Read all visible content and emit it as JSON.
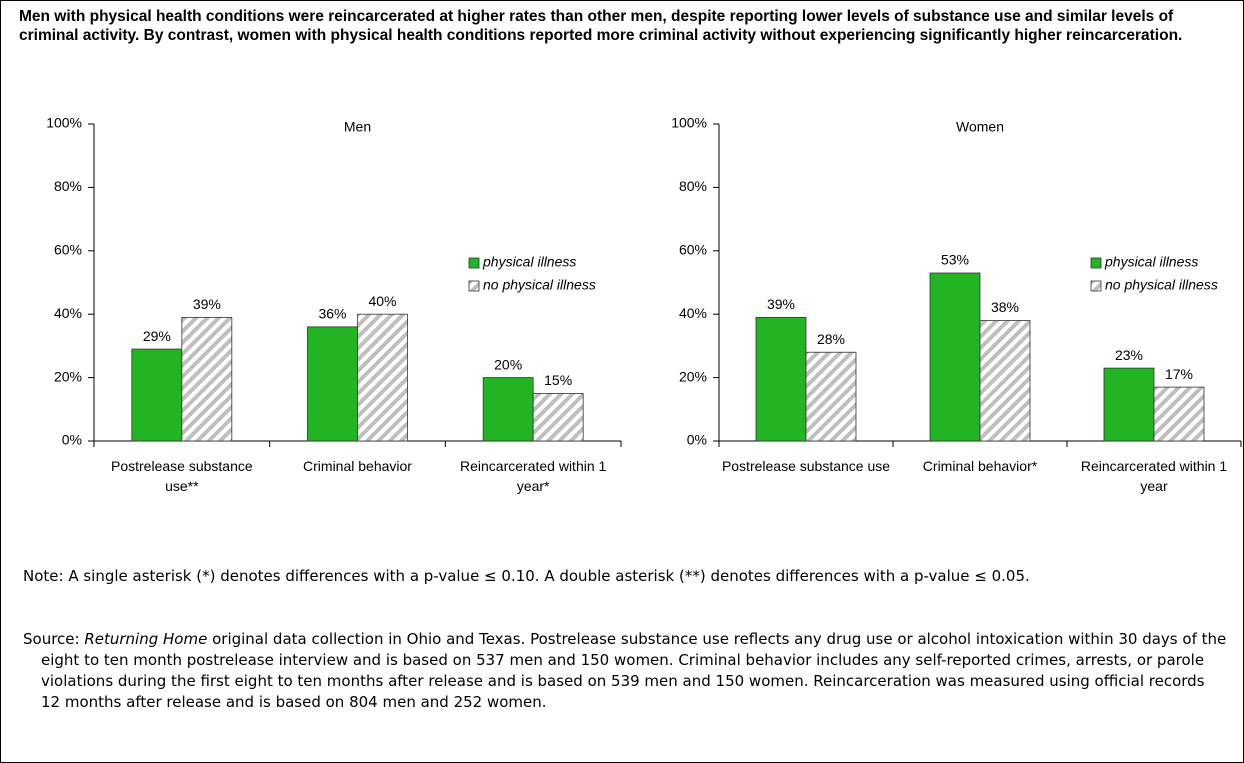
{
  "title": "Men with physical health conditions were reincarcerated at higher rates than other men, despite reporting lower levels of substance use and similar levels of criminal activity.  By contrast, women with physical health conditions reported more criminal activity without experiencing significantly higher reincarceration.",
  "chart_data": [
    {
      "type": "bar",
      "subtitle": "Men",
      "categories": [
        "Postrelease substance use**",
        "Criminal behavior",
        "Reincarcerated within 1 year*"
      ],
      "series": [
        {
          "name": "physical illness",
          "color": "#22b422",
          "values": [
            29,
            36,
            20
          ],
          "value_labels": [
            "29%",
            "36%",
            "20%"
          ]
        },
        {
          "name": "no physical illness",
          "color": "#bfbfbf",
          "hatch": true,
          "values": [
            39,
            40,
            15
          ],
          "value_labels": [
            "39%",
            "40%",
            "15%"
          ]
        }
      ],
      "ylim": [
        0,
        100
      ],
      "yticks": [
        {
          "value": 0,
          "label": "0%"
        },
        {
          "value": 20,
          "label": "20%"
        },
        {
          "value": 40,
          "label": "40%"
        },
        {
          "value": 60,
          "label": "60%"
        },
        {
          "value": 80,
          "label": "80%"
        },
        {
          "value": 100,
          "label": "100%"
        }
      ],
      "grid": false,
      "legend": "right"
    },
    {
      "type": "bar",
      "subtitle": "Women",
      "categories": [
        "Postrelease substance use",
        "Criminal behavior*",
        "Reincarcerated within 1 year"
      ],
      "series": [
        {
          "name": "physical illness",
          "color": "#22b422",
          "values": [
            39,
            53,
            23
          ],
          "value_labels": [
            "39%",
            "53%",
            "23%"
          ]
        },
        {
          "name": "no physical illness",
          "color": "#bfbfbf",
          "hatch": true,
          "values": [
            28,
            38,
            17
          ],
          "value_labels": [
            "28%",
            "38%",
            "17%"
          ]
        }
      ],
      "ylim": [
        0,
        100
      ],
      "yticks": [
        {
          "value": 0,
          "label": "0%"
        },
        {
          "value": 20,
          "label": "20%"
        },
        {
          "value": 40,
          "label": "40%"
        },
        {
          "value": 60,
          "label": "60%"
        },
        {
          "value": 80,
          "label": "80%"
        },
        {
          "value": 100,
          "label": "100%"
        }
      ],
      "grid": false,
      "legend": "right"
    }
  ],
  "note": "Note: A single asterisk (*) denotes differences with a p-value ≤ 0.10.  A double asterisk (**) denotes differences with a p-value ≤ 0.05.",
  "source": {
    "label": "Source: ",
    "title": "Returning Home",
    "text": " original data collection in Ohio and Texas.  Postrelease substance use reflects any drug use or alcohol intoxication within 30 days of the eight to ten month postrelease interview and is based on 537 men and 150 women.  Criminal behavior includes any self-reported crimes, arrests, or parole violations during the first eight to ten months after release and is based on 539 men and 150 women.  Reincarceration was measured using official records 12 months after release and is based on 804 men and 252 women."
  }
}
